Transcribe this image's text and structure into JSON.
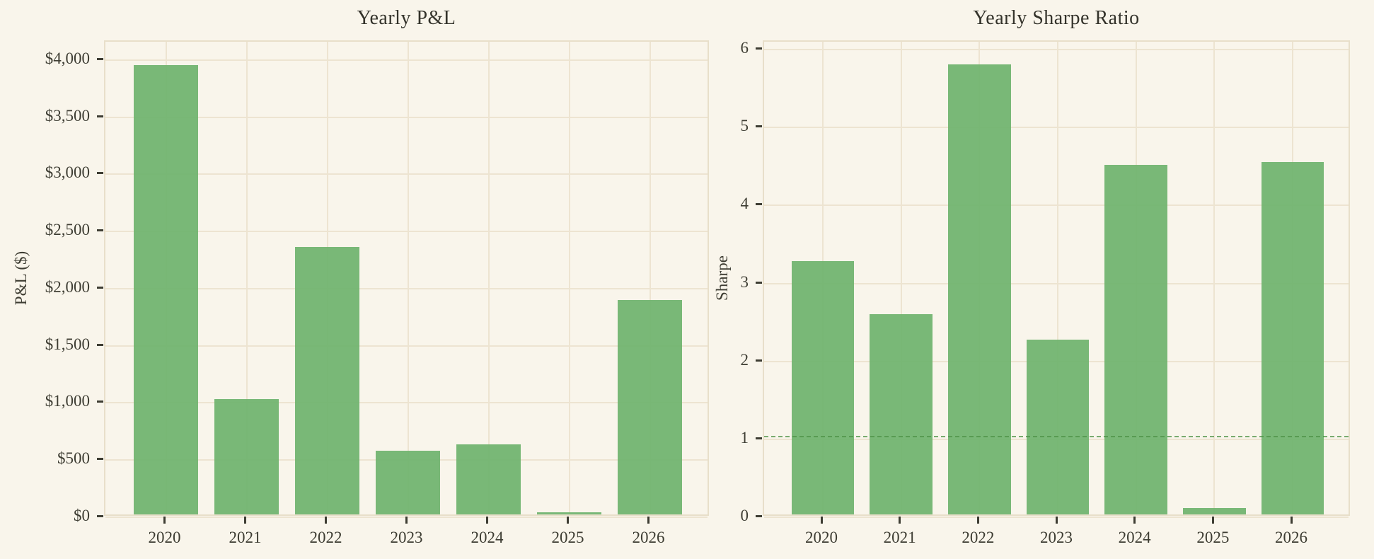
{
  "figure": {
    "background_color": "#f9f5eb",
    "gridline_color": "#ede4d1",
    "spine_color": "#e8dfca",
    "text_color": "#3e3d33",
    "bar_color": "#78b877"
  },
  "chart_data": [
    {
      "type": "bar",
      "title": "Yearly P&L",
      "ylabel": "P&L ($)",
      "xlabel": "",
      "categories": [
        "2020",
        "2021",
        "2022",
        "2023",
        "2024",
        "2025",
        "2026"
      ],
      "values": [
        3930,
        1010,
        2340,
        560,
        615,
        20,
        1875
      ],
      "ylim": [
        0,
        4160
      ],
      "yticks": [
        0,
        500,
        1000,
        1500,
        2000,
        2500,
        3000,
        3500,
        4000
      ],
      "ytick_labels": [
        "$0",
        "$500",
        "$1,000",
        "$1,500",
        "$2,000",
        "$2,500",
        "$3,000",
        "$3,500",
        "$4,000"
      ],
      "grid": true,
      "legend": null,
      "bar_color": "#78b877"
    },
    {
      "type": "bar",
      "title": "Yearly Sharpe Ratio",
      "ylabel": "Sharpe",
      "xlabel": "",
      "categories": [
        "2020",
        "2021",
        "2022",
        "2023",
        "2024",
        "2025",
        "2026"
      ],
      "values": [
        3.25,
        2.57,
        5.77,
        2.24,
        4.48,
        0.08,
        4.52
      ],
      "ylim": [
        0,
        6.1
      ],
      "yticks": [
        0,
        1,
        2,
        3,
        4,
        5,
        6
      ],
      "ytick_labels": [
        "0",
        "1",
        "2",
        "3",
        "4",
        "5",
        "6"
      ],
      "grid": true,
      "legend": null,
      "refline": {
        "value": 1,
        "style": "dashed",
        "color": "#4e9246"
      },
      "bar_color": "#78b877"
    }
  ]
}
